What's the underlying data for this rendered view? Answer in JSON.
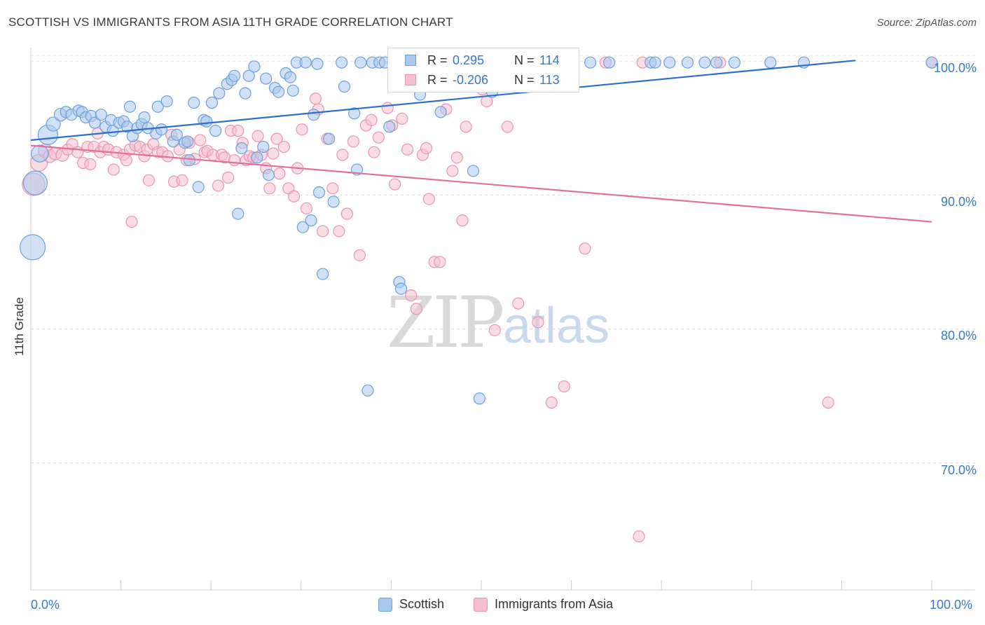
{
  "header": {
    "title": "SCOTTISH VS IMMIGRANTS FROM ASIA 11TH GRADE CORRELATION CHART",
    "source": "Source: ZipAtlas.com"
  },
  "watermark": {
    "zip": "ZIP",
    "atlas": "atlas"
  },
  "legend_top": {
    "rows": [
      {
        "r_label": "R =",
        "r_value": "0.295",
        "n_label": "N =",
        "n_value": "114"
      },
      {
        "r_label": "R =",
        "r_value": "-0.206",
        "n_label": "N =",
        "n_value": "113"
      }
    ]
  },
  "bottom_legend": {
    "series1": "Scottish",
    "series2": "Immigrants from Asia"
  },
  "colors": {
    "scottish_fill": "#a9c8ee",
    "scottish_stroke": "#6f9fd8",
    "scottish_line": "#2f6fcc",
    "asia_fill": "#f6bfd0",
    "asia_stroke": "#e895b0",
    "asia_line": "#e0709a",
    "axis_label": "#3a78c9",
    "grid": "#dddddd"
  },
  "chart_data": {
    "type": "scatter",
    "title": "SCOTTISH VS IMMIGRANTS FROM ASIA 11TH GRADE CORRELATION CHART",
    "xlabel": "",
    "ylabel": "11th Grade",
    "xlim": [
      0,
      100
    ],
    "ylim": [
      60.5,
      100.8
    ],
    "x_tick_labels": [
      "0.0%",
      "100.0%"
    ],
    "y_ticks": [
      100,
      90,
      80,
      70
    ],
    "y_tick_labels": [
      "100.0%",
      "90.0%",
      "80.0%",
      "70.0%"
    ],
    "grid": true,
    "series": [
      {
        "name": "Scottish",
        "r": 0.295,
        "n": 114,
        "trend": {
          "x": [
            0,
            100
          ],
          "y": [
            94.1,
            100.6
          ]
        },
        "points": [
          [
            0.2,
            86.1,
            18
          ],
          [
            0.5,
            90.9,
            17
          ],
          [
            1.0,
            93.1,
            12
          ],
          [
            1.9,
            94.5,
            14
          ],
          [
            2.5,
            95.3,
            10
          ],
          [
            3.3,
            96.0,
            9
          ],
          [
            3.9,
            96.2,
            8
          ],
          [
            4.5,
            96.0,
            8
          ],
          [
            5.3,
            96.3,
            8
          ],
          [
            5.7,
            96.2,
            8
          ],
          [
            6.1,
            95.8,
            8
          ],
          [
            6.7,
            95.9,
            8
          ],
          [
            7.1,
            95.4,
            8
          ],
          [
            7.8,
            96.0,
            8
          ],
          [
            8.3,
            95.1,
            8
          ],
          [
            8.9,
            95.6,
            8
          ],
          [
            9.1,
            94.8,
            8
          ],
          [
            9.8,
            95.4,
            8
          ],
          [
            10.3,
            95.5,
            8
          ],
          [
            10.7,
            95.1,
            8
          ],
          [
            11.0,
            96.6,
            8
          ],
          [
            11.3,
            94.4,
            8
          ],
          [
            11.8,
            95.0,
            8
          ],
          [
            12.3,
            95.3,
            8
          ],
          [
            12.6,
            95.8,
            8
          ],
          [
            13.0,
            95.0,
            8
          ],
          [
            13.9,
            94.6,
            8
          ],
          [
            14.1,
            96.6,
            8
          ],
          [
            14.5,
            94.9,
            8
          ],
          [
            15.1,
            97.0,
            8
          ],
          [
            15.8,
            94.0,
            8
          ],
          [
            16.2,
            94.5,
            8
          ],
          [
            17.1,
            93.9,
            8
          ],
          [
            17.4,
            94.0,
            8
          ],
          [
            17.6,
            92.6,
            8
          ],
          [
            18.1,
            96.9,
            8
          ],
          [
            18.6,
            90.6,
            8
          ],
          [
            19.2,
            95.6,
            8
          ],
          [
            19.5,
            95.5,
            8
          ],
          [
            20.1,
            96.9,
            8
          ],
          [
            20.5,
            94.8,
            8
          ],
          [
            20.9,
            97.6,
            8
          ],
          [
            21.8,
            98.3,
            8
          ],
          [
            22.3,
            98.6,
            8
          ],
          [
            22.6,
            98.9,
            8
          ],
          [
            23.0,
            88.6,
            8
          ],
          [
            23.4,
            93.5,
            8
          ],
          [
            23.8,
            97.6,
            8
          ],
          [
            24.2,
            98.9,
            8
          ],
          [
            24.8,
            99.6,
            8
          ],
          [
            25.1,
            92.8,
            8
          ],
          [
            25.8,
            93.6,
            8
          ],
          [
            26.1,
            98.7,
            8
          ],
          [
            26.4,
            91.5,
            8
          ],
          [
            27.1,
            98.0,
            8
          ],
          [
            27.5,
            97.7,
            8
          ],
          [
            28.3,
            99.1,
            8
          ],
          [
            28.8,
            98.8,
            8
          ],
          [
            29.1,
            97.8,
            8
          ],
          [
            29.5,
            99.9,
            8
          ],
          [
            30.2,
            87.6,
            8
          ],
          [
            30.5,
            99.9,
            8
          ],
          [
            31.1,
            88.1,
            8
          ],
          [
            31.8,
            99.8,
            8
          ],
          [
            31.4,
            96.0,
            8
          ],
          [
            32.0,
            90.2,
            8
          ],
          [
            32.4,
            84.1,
            8
          ],
          [
            33.1,
            94.2,
            8
          ],
          [
            33.6,
            89.5,
            8
          ],
          [
            34.5,
            99.9,
            8
          ],
          [
            34.8,
            98.1,
            8
          ],
          [
            35.9,
            96.1,
            8
          ],
          [
            36.2,
            91.9,
            8
          ],
          [
            36.6,
            99.9,
            8
          ],
          [
            37.4,
            75.4,
            8
          ],
          [
            37.9,
            99.9,
            8
          ],
          [
            38.7,
            99.9,
            8
          ],
          [
            39.3,
            99.9,
            8
          ],
          [
            39.8,
            95.1,
            8
          ],
          [
            40.2,
            99.9,
            8
          ],
          [
            40.9,
            83.5,
            8
          ],
          [
            41.1,
            83.0,
            8
          ],
          [
            41.8,
            99.9,
            8
          ],
          [
            42.5,
            99.9,
            8
          ],
          [
            43.2,
            97.5,
            8
          ],
          [
            43.8,
            99.9,
            8
          ],
          [
            44.4,
            99.9,
            8
          ],
          [
            45.1,
            99.9,
            8
          ],
          [
            45.5,
            96.2,
            8
          ],
          [
            46.3,
            99.9,
            8
          ],
          [
            47.1,
            99.9,
            8
          ],
          [
            48.2,
            99.9,
            8
          ],
          [
            49.1,
            91.8,
            8
          ],
          [
            49.8,
            74.8,
            8
          ],
          [
            50.4,
            99.9,
            8
          ],
          [
            51.2,
            97.7,
            8
          ],
          [
            52.1,
            99.9,
            8
          ],
          [
            52.8,
            99.9,
            8
          ],
          [
            54.3,
            99.9,
            8
          ],
          [
            55.1,
            99.9,
            8
          ],
          [
            57.6,
            99.9,
            8
          ],
          [
            59.9,
            99.9,
            8
          ],
          [
            62.1,
            99.9,
            8
          ],
          [
            64.2,
            99.9,
            8
          ],
          [
            68.8,
            99.9,
            8
          ],
          [
            69.3,
            99.9,
            8
          ],
          [
            70.9,
            99.9,
            8
          ],
          [
            72.9,
            99.9,
            8
          ],
          [
            74.8,
            99.9,
            8
          ],
          [
            76.1,
            99.9,
            8
          ],
          [
            78.1,
            99.9,
            8
          ],
          [
            82.1,
            99.9,
            8
          ],
          [
            85.8,
            99.9,
            8
          ],
          [
            100.0,
            99.9,
            8
          ]
        ]
      },
      {
        "name": "Immigrants from Asia",
        "r": -0.206,
        "n": 113,
        "trend": {
          "x": [
            0,
            100
          ],
          "y": [
            93.7,
            88.0
          ]
        },
        "points": [
          [
            0.3,
            90.8,
            16
          ],
          [
            0.9,
            92.4,
            12
          ],
          [
            1.6,
            93.3,
            10
          ],
          [
            2.1,
            92.9,
            9
          ],
          [
            2.7,
            93.1,
            9
          ],
          [
            3.5,
            93.0,
            9
          ],
          [
            4.1,
            93.4,
            8
          ],
          [
            4.6,
            93.8,
            8
          ],
          [
            5.2,
            93.2,
            8
          ],
          [
            5.8,
            92.4,
            8
          ],
          [
            6.3,
            93.6,
            8
          ],
          [
            6.6,
            92.3,
            8
          ],
          [
            7.0,
            93.6,
            8
          ],
          [
            7.4,
            94.6,
            8
          ],
          [
            7.7,
            93.2,
            8
          ],
          [
            8.1,
            93.6,
            8
          ],
          [
            8.6,
            93.4,
            8
          ],
          [
            9.2,
            91.9,
            8
          ],
          [
            9.5,
            93.2,
            8
          ],
          [
            10.3,
            93.0,
            8
          ],
          [
            10.6,
            92.6,
            8
          ],
          [
            11.0,
            93.4,
            8
          ],
          [
            11.2,
            88.0,
            8
          ],
          [
            11.6,
            93.7,
            8
          ],
          [
            12.1,
            93.6,
            8
          ],
          [
            12.6,
            92.9,
            8
          ],
          [
            12.9,
            93.4,
            8
          ],
          [
            13.1,
            91.1,
            8
          ],
          [
            13.6,
            93.8,
            8
          ],
          [
            14.1,
            93.2,
            8
          ],
          [
            14.6,
            93.2,
            8
          ],
          [
            15.2,
            92.9,
            8
          ],
          [
            15.6,
            94.5,
            8
          ],
          [
            15.9,
            91.0,
            8
          ],
          [
            16.5,
            93.4,
            8
          ],
          [
            16.8,
            91.1,
            8
          ],
          [
            17.3,
            92.6,
            8
          ],
          [
            17.6,
            93.9,
            8
          ],
          [
            18.2,
            92.7,
            8
          ],
          [
            18.8,
            94.1,
            8
          ],
          [
            19.3,
            93.2,
            8
          ],
          [
            19.6,
            93.3,
            8
          ],
          [
            20.2,
            93.0,
            8
          ],
          [
            20.8,
            90.7,
            8
          ],
          [
            21.2,
            93.0,
            8
          ],
          [
            21.5,
            92.8,
            8
          ],
          [
            21.9,
            91.3,
            8
          ],
          [
            22.2,
            94.8,
            8
          ],
          [
            22.6,
            92.6,
            8
          ],
          [
            23.0,
            94.8,
            8
          ],
          [
            23.5,
            93.9,
            8
          ],
          [
            23.9,
            92.6,
            8
          ],
          [
            24.3,
            92.9,
            8
          ],
          [
            24.7,
            92.8,
            8
          ],
          [
            25.2,
            94.4,
            8
          ],
          [
            25.6,
            93.0,
            8
          ],
          [
            26.1,
            92.0,
            8
          ],
          [
            26.5,
            90.5,
            8
          ],
          [
            26.9,
            93.1,
            8
          ],
          [
            27.3,
            94.2,
            8
          ],
          [
            27.6,
            91.6,
            8
          ],
          [
            28.1,
            93.6,
            8
          ],
          [
            28.6,
            90.5,
            8
          ],
          [
            29.2,
            89.9,
            8
          ],
          [
            29.6,
            92.0,
            8
          ],
          [
            30.1,
            94.9,
            8
          ],
          [
            30.6,
            89.0,
            8
          ],
          [
            31.6,
            97.2,
            8
          ],
          [
            31.9,
            96.4,
            8
          ],
          [
            32.4,
            87.3,
            8
          ],
          [
            32.9,
            94.2,
            8
          ],
          [
            33.5,
            90.5,
            8
          ],
          [
            34.2,
            87.3,
            8
          ],
          [
            34.6,
            93.0,
            8
          ],
          [
            35.1,
            88.6,
            8
          ],
          [
            35.8,
            94.0,
            8
          ],
          [
            36.5,
            85.5,
            8
          ],
          [
            37.2,
            95.2,
            8
          ],
          [
            37.8,
            95.6,
            8
          ],
          [
            38.1,
            93.2,
            8
          ],
          [
            38.6,
            94.3,
            8
          ],
          [
            39.6,
            96.5,
            8
          ],
          [
            40.1,
            95.2,
            8
          ],
          [
            40.4,
            90.8,
            8
          ],
          [
            41.2,
            95.7,
            8
          ],
          [
            41.8,
            93.4,
            8
          ],
          [
            42.2,
            82.5,
            8
          ],
          [
            42.8,
            81.5,
            8
          ],
          [
            43.5,
            93.0,
            8
          ],
          [
            43.9,
            93.5,
            8
          ],
          [
            44.2,
            89.7,
            8
          ],
          [
            44.8,
            85.0,
            8
          ],
          [
            45.4,
            85.0,
            8
          ],
          [
            46.1,
            96.4,
            8
          ],
          [
            46.8,
            91.8,
            8
          ],
          [
            47.3,
            92.8,
            8
          ],
          [
            47.9,
            88.1,
            8
          ],
          [
            48.3,
            95.1,
            8
          ],
          [
            50.1,
            97.9,
            8
          ],
          [
            50.6,
            97.0,
            8
          ],
          [
            51.5,
            79.9,
            8
          ],
          [
            52.9,
            95.1,
            8
          ],
          [
            54.1,
            81.9,
            8
          ],
          [
            56.3,
            80.5,
            8
          ],
          [
            57.8,
            74.5,
            8
          ],
          [
            59.2,
            75.7,
            8
          ],
          [
            61.5,
            86.0,
            8
          ],
          [
            63.8,
            99.9,
            8
          ],
          [
            67.5,
            64.5,
            8
          ],
          [
            67.9,
            99.9,
            8
          ],
          [
            76.5,
            99.9,
            8
          ],
          [
            88.5,
            74.5,
            8
          ],
          [
            100.0,
            99.9,
            8
          ]
        ]
      }
    ]
  }
}
